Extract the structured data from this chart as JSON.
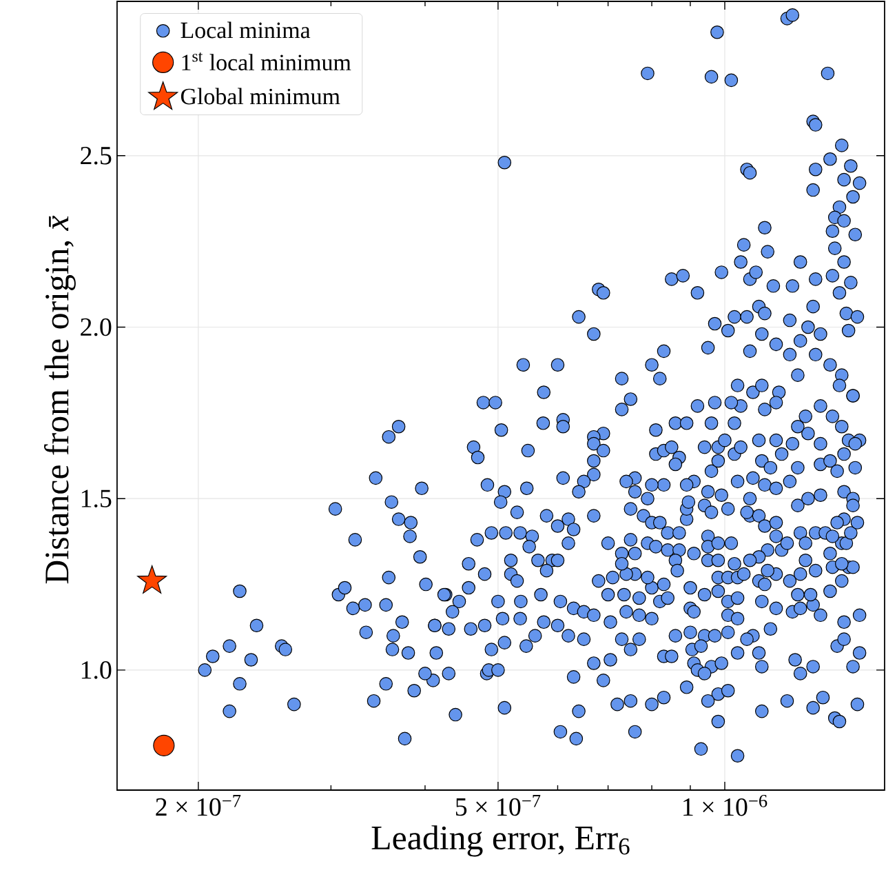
{
  "chart_data": {
    "type": "scatter",
    "xlabel": "Leading error, Err$_{6}$",
    "ylabel": "Distance from the origin, *x̄*",
    "log": "x",
    "grid": true,
    "legend": "top left",
    "xlim": [
      1.56e-07,
      1.63e-06
    ],
    "ylim": [
      0.65,
      2.95
    ],
    "xticks": [
      {
        "value": 2e-07,
        "label": "2 × 10$^{−7}$"
      },
      {
        "value": 3e-07,
        "label": null
      },
      {
        "value": 4e-07,
        "label": null
      },
      {
        "value": 5e-07,
        "label": "5 × 10$^{−7}$"
      },
      {
        "value": 6e-07,
        "label": null
      },
      {
        "value": 7e-07,
        "label": null
      },
      {
        "value": 8e-07,
        "label": null
      },
      {
        "value": 9e-07,
        "label": null
      },
      {
        "value": 1e-06,
        "label": "1 × 10$^{−6}$"
      }
    ],
    "yticks": [
      {
        "value": 1.0,
        "label": "1.0"
      },
      {
        "value": 1.5,
        "label": "1.5"
      },
      {
        "value": 2.0,
        "label": "2.0"
      },
      {
        "value": 2.5,
        "label": "2.5"
      }
    ],
    "series": [
      {
        "name": "Local minima",
        "color": "#6495ed",
        "marker": "circle",
        "x": [
          2.27e-07,
          2.04e-07,
          2.09e-07,
          2.2e-07,
          2.39e-07,
          2.35e-07,
          2.27e-07,
          2.2e-07,
          2.58e-07,
          2.61e-07,
          2.68e-07,
          3.04e-07,
          3.07e-07,
          3.13e-07,
          3.21e-07,
          3.23e-07,
          3.33e-07,
          3.34e-07,
          3.42e-07,
          3.44e-07,
          3.55e-07,
          3.55e-07,
          3.58e-07,
          3.58e-07,
          3.69e-07,
          3.61e-07,
          3.62e-07,
          3.63e-07,
          3.69e-07,
          3.73e-07,
          3.76e-07,
          3.8e-07,
          3.83e-07,
          3.82e-07,
          3.94e-07,
          3.96e-07,
          4.01e-07,
          3.87e-07,
          4.12e-07,
          4.14e-07,
          4.1e-07,
          4.39e-07,
          4.26e-07,
          4.57e-07,
          4.64e-07,
          4.7e-07,
          4.78e-07,
          4.69e-07,
          4.84e-07,
          4.83e-07,
          5.1e-07,
          7.9e-07,
          9.6e-07,
          9.77e-07,
          1.02e-06,
          1.21e-06,
          1.23e-06,
          1.37e-06,
          1.31e-06,
          1.32e-06,
          1.43e-06,
          1.38e-06,
          1.47e-06,
          1.07e-06,
          1.08e-06,
          1.32e-06,
          1.44e-06,
          1.51e-06,
          1.31e-06,
          1.48e-06,
          1.42e-06,
          1.4e-06,
          1.44e-06,
          1.13e-06,
          1.39e-06,
          1.49e-06,
          1.4e-06,
          1.06e-06,
          1.14e-06,
          1.05e-06,
          1.26e-06,
          1.44e-06,
          9.9e-07,
          8.5e-07,
          8.8e-07,
          1.08e-06,
          1.1e-06,
          1.39e-06,
          1.32e-06,
          1.47e-06,
          9.2e-07,
          6.8e-07,
          6.9e-07,
          1.16e-06,
          1.23e-06,
          1.42e-06,
          6.4e-07,
          1.03e-06,
          1.07e-06,
          1.11e-06,
          1.13e-06,
          1.22e-06,
          1.31e-06,
          1.45e-06,
          1.5e-06,
          6.7e-07,
          9.7e-07,
          1.01e-06,
          1.29e-06,
          1.34e-06,
          1.46e-06,
          5.4e-07,
          6e-07,
          5.75e-07,
          8.3e-07,
          8e-07,
          8.2e-07,
          7.3e-07,
          9.5e-07,
          1.08e-06,
          1.12e-06,
          1.17e-06,
          1.22e-06,
          1.26e-06,
          1.32e-06,
          1.38e-06,
          1.04e-06,
          1.09e-06,
          1.12e-06,
          1.18e-06,
          1.25e-06,
          1.43e-06,
          1.48e-06,
          4.96e-07,
          5.05e-07,
          5.48e-07,
          5.74e-07,
          6.1e-07,
          6.1e-07,
          7.3e-07,
          7.5e-07,
          6.9e-07,
          6.7e-07,
          6.7e-07,
          6.9e-07,
          6.7e-07,
          6.7e-07,
          6.5e-07,
          6.4e-07,
          6.1e-07,
          5.1e-07,
          5.46e-07,
          5.04e-07,
          5.3e-07,
          4.9e-07,
          5.12e-07,
          5.35e-07,
          5.55e-07,
          5.5e-07,
          5.8e-07,
          6e-07,
          6.2e-07,
          6.3e-07,
          6.2e-07,
          6.7e-07,
          5.65e-07,
          5.9e-07,
          6e-07,
          5.8e-07,
          5.2e-07,
          5.2e-07,
          5.3e-07,
          4.8e-07,
          4.57e-07,
          4.24e-07,
          4.44e-07,
          4.35e-07,
          4.12e-07,
          4.3e-07,
          4.6e-07,
          4.8e-07,
          5.07e-07,
          5e-07,
          5.36e-07,
          5.7e-07,
          6.05e-07,
          6.3e-07,
          6.5e-07,
          6.7e-07,
          5.35e-07,
          5.6e-07,
          5.75e-07,
          6e-07,
          6.2e-07,
          6.5e-07,
          5.1e-07,
          4.9e-07,
          5.45e-07,
          4e-07,
          4.3e-07,
          4.86e-07,
          5e-07,
          5.1e-07,
          6.05e-07,
          6.35e-07,
          6.4e-07,
          6.3e-07,
          6.7e-07,
          6.9e-07,
          7.05e-07,
          7.2e-07,
          7.5e-07,
          7.6e-07,
          8e-07,
          8.3e-07,
          7.05e-07,
          7.3e-07,
          7.5e-07,
          7.7e-07,
          7.4e-07,
          7.7e-07,
          8e-07,
          8.2e-07,
          8.4e-07,
          8e-07,
          8.3e-07,
          7.7e-07,
          7.35e-07,
          7e-07,
          6.8e-07,
          7.1e-07,
          7.6e-07,
          7.4e-07,
          7.9e-07,
          7e-07,
          7.3e-07,
          7.5e-07,
          7.6e-07,
          7.3e-07,
          7.9e-07,
          8.1e-07,
          8.4e-07,
          8.7e-07,
          8.6e-07,
          8.65e-07,
          7.5e-07,
          7.8e-07,
          8e-07,
          8.2e-07,
          8.4e-07,
          8.7e-07,
          8.9e-07,
          8.9e-07,
          8.95e-07,
          9.1e-07,
          8.9e-07,
          8.3e-07,
          8e-07,
          7.6e-07,
          7.4e-07,
          7.6e-07,
          7.9e-07,
          8.1e-07,
          8.3e-07,
          8.5e-07,
          8.7e-07,
          8.6e-07,
          8.1e-07,
          8.6e-07,
          8.9e-07,
          9.2e-07,
          9.6e-07,
          9.7e-07,
          1.03e-06,
          1.05e-06,
          1.02e-06,
          9.4e-07,
          9.8e-07,
          1e-06,
          1.03e-06,
          1.05e-06,
          9.6e-07,
          9.8e-07,
          9.5e-07,
          9.9e-07,
          1.01e-06,
          9.4e-07,
          9.6e-07,
          9.5e-07,
          9.5e-07,
          9.8e-07,
          1.02e-06,
          9.1e-07,
          9.5e-07,
          9.8e-07,
          1.03e-06,
          9.8e-07,
          1.01e-06,
          1.04e-06,
          1.06e-06,
          9e-07,
          9.4e-07,
          9.8e-07,
          1.01e-06,
          1.04e-06,
          9e-07,
          9.1e-07,
          1.01e-06,
          1.04e-06,
          8.6e-07,
          9e-07,
          9.4e-07,
          9.7e-07,
          1.01e-06,
          1.09e-06,
          1.07e-06,
          9.05e-07,
          9.3e-07,
          8.3e-07,
          8.5e-07,
          9.1e-07,
          9.2e-07,
          9.6e-07,
          9.9e-07,
          9.4e-07,
          1.04e-06,
          1.11e-06,
          1.12e-06,
          8.9e-07,
          9.8e-07,
          1.01e-06,
          9.5e-07,
          9.8e-07,
          9.3e-07,
          1.04e-06,
          1.12e-06,
          1.21e-06,
          1.24e-06,
          1.26e-06,
          1.31e-06,
          1.31e-06,
          1.35e-06,
          1.4e-06,
          1.42e-06,
          1.5e-06,
          1.48e-06,
          1.51e-06,
          1.41e-06,
          1.44e-06,
          1.51e-06,
          1.44e-06,
          1.34e-06,
          1.23e-06,
          1.17e-06,
          1.15e-06,
          1.12e-06,
          1.26e-06,
          1.31e-06,
          1.38e-06,
          1.3e-06,
          1.25e-06,
          1.11e-06,
          1.13e-06,
          1.17e-06,
          1.22e-06,
          1.26e-06,
          1.32e-06,
          1.39e-06,
          1.43e-06,
          1.46e-06,
          1.48e-06,
          1.43e-06,
          1.38e-06,
          1.43e-06,
          1.28e-06,
          1.19e-06,
          1.14e-06,
          1.11e-06,
          1.08e-06,
          1.14e-06,
          1.17e-06,
          1.21e-06,
          1.26e-06,
          1.28e-06,
          1.32e-06,
          1.36e-06,
          1.39e-06,
          1.45e-06,
          1.47e-06,
          1.5e-06,
          1.44e-06,
          1.41e-06,
          1.08e-06,
          1.11e-06,
          1.13e-06,
          1.17e-06,
          1.08e-06,
          1.07e-06,
          1.25e-06,
          1.29e-06,
          1.34e-06,
          1.44e-06,
          1.48e-06,
          1.48e-06,
          1.04e-06,
          1.09e-06,
          1.13e-06,
          1.17e-06,
          1.22e-06,
          1.25e-06,
          1.34e-06,
          1.38e-06,
          1.41e-06,
          1.49e-06,
          1.44e-06,
          1.34e-06,
          1.29e-06,
          1.25e-06,
          1.28e-06,
          1.39e-06,
          1.43e-06,
          1.46e-06,
          1.51e-06,
          1.49e-06,
          1.11e-06,
          1.12e-06,
          1.15e-06,
          1.17e-06,
          1.19e-06,
          1.23e-06,
          1.13e-06,
          1.17e-06,
          1.34e-06,
          1.48e-06,
          1.42e-06
        ],
        "values": [
          1.23,
          1.0,
          1.04,
          1.07,
          1.13,
          1.03,
          0.96,
          0.88,
          1.07,
          1.06,
          0.9,
          1.47,
          1.22,
          1.24,
          1.18,
          1.38,
          1.19,
          1.11,
          0.91,
          1.56,
          0.96,
          1.19,
          1.27,
          1.68,
          1.71,
          1.49,
          1.06,
          1.1,
          1.44,
          1.14,
          0.8,
          1.05,
          1.43,
          1.39,
          1.33,
          1.53,
          1.25,
          0.94,
          1.13,
          1.05,
          0.97,
          0.87,
          1.22,
          1.31,
          1.65,
          1.62,
          1.78,
          1.38,
          1.54,
          0.99,
          2.48,
          2.74,
          2.73,
          2.86,
          2.72,
          2.9,
          2.91,
          2.74,
          2.6,
          2.59,
          2.53,
          2.49,
          2.47,
          2.46,
          2.45,
          2.46,
          2.43,
          2.42,
          2.4,
          2.38,
          2.35,
          2.32,
          2.31,
          2.29,
          2.28,
          2.27,
          2.23,
          2.24,
          2.22,
          2.19,
          2.19,
          2.19,
          2.16,
          2.14,
          2.15,
          2.14,
          2.16,
          2.15,
          2.14,
          2.13,
          2.1,
          2.11,
          2.1,
          2.12,
          2.12,
          2.1,
          2.03,
          2.03,
          2.03,
          2.06,
          2.04,
          2.02,
          2.06,
          2.04,
          2.03,
          1.98,
          2.01,
          1.99,
          2.0,
          1.98,
          1.99,
          1.89,
          1.89,
          1.81,
          1.93,
          1.89,
          1.85,
          1.85,
          1.94,
          1.93,
          1.98,
          1.95,
          1.92,
          1.96,
          1.92,
          1.89,
          1.83,
          1.81,
          1.83,
          1.81,
          1.86,
          1.86,
          1.8,
          1.78,
          1.7,
          1.64,
          1.72,
          1.73,
          1.71,
          1.76,
          1.79,
          1.69,
          1.68,
          1.66,
          1.64,
          1.61,
          1.57,
          1.55,
          1.52,
          1.56,
          1.52,
          1.53,
          1.49,
          1.46,
          1.4,
          1.4,
          1.4,
          1.39,
          1.36,
          1.45,
          1.42,
          1.44,
          1.41,
          1.37,
          1.45,
          1.32,
          1.32,
          1.32,
          1.29,
          1.32,
          1.28,
          1.26,
          1.28,
          1.24,
          1.22,
          1.2,
          1.17,
          1.13,
          1.12,
          1.12,
          1.13,
          1.15,
          1.2,
          1.2,
          1.22,
          1.2,
          1.18,
          1.17,
          1.16,
          1.15,
          1.1,
          1.14,
          1.13,
          1.1,
          1.09,
          1.08,
          1.06,
          1.07,
          0.99,
          0.99,
          1.0,
          1.0,
          0.89,
          0.82,
          0.8,
          0.88,
          0.98,
          1.02,
          0.97,
          1.03,
          0.9,
          0.91,
          0.82,
          0.9,
          0.92,
          1.14,
          1.09,
          1.06,
          1.09,
          1.17,
          1.16,
          1.15,
          1.2,
          1.21,
          1.24,
          1.25,
          1.21,
          1.22,
          1.22,
          1.26,
          1.27,
          1.28,
          1.28,
          1.27,
          1.37,
          1.34,
          1.38,
          1.34,
          1.31,
          1.37,
          1.36,
          1.35,
          1.35,
          1.32,
          1.29,
          1.47,
          1.45,
          1.43,
          1.43,
          1.4,
          1.4,
          1.44,
          1.47,
          1.49,
          1.55,
          1.54,
          1.54,
          1.54,
          1.56,
          1.55,
          1.52,
          1.5,
          1.63,
          1.64,
          1.65,
          1.62,
          1.6,
          1.7,
          1.72,
          1.72,
          1.77,
          1.72,
          1.78,
          1.72,
          1.77,
          1.78,
          1.65,
          1.65,
          1.67,
          1.63,
          1.65,
          1.58,
          1.61,
          1.52,
          1.51,
          1.47,
          1.48,
          1.46,
          1.39,
          1.36,
          1.37,
          1.37,
          1.34,
          1.32,
          1.32,
          1.31,
          1.27,
          1.27,
          1.27,
          1.28,
          1.24,
          1.22,
          1.23,
          1.2,
          1.21,
          1.18,
          1.17,
          1.16,
          1.15,
          1.1,
          1.11,
          1.1,
          1.1,
          1.11,
          1.1,
          1.09,
          1.06,
          1.07,
          1.04,
          1.04,
          1.02,
          1.0,
          1.01,
          1.02,
          0.99,
          1.05,
          1.05,
          1.01,
          0.95,
          0.93,
          0.94,
          0.91,
          0.85,
          0.77,
          0.75,
          0.88,
          0.91,
          1.03,
          0.99,
          1.01,
          0.89,
          0.92,
          0.86,
          0.85,
          0.9,
          1.01,
          1.05,
          1.07,
          1.09,
          1.16,
          1.14,
          1.16,
          1.17,
          1.18,
          1.12,
          1.2,
          1.18,
          1.19,
          1.23,
          1.22,
          1.22,
          1.26,
          1.25,
          1.28,
          1.26,
          1.28,
          1.29,
          1.3,
          1.26,
          1.3,
          1.3,
          1.31,
          1.34,
          1.37,
          1.32,
          1.35,
          1.35,
          1.33,
          1.32,
          1.29,
          1.39,
          1.37,
          1.4,
          1.37,
          1.4,
          1.4,
          1.39,
          1.37,
          1.4,
          1.43,
          1.44,
          1.43,
          1.45,
          1.45,
          1.42,
          1.43,
          1.5,
          1.46,
          1.48,
          1.5,
          1.51,
          1.52,
          1.5,
          1.48,
          1.55,
          1.56,
          1.54,
          1.53,
          1.55,
          1.59,
          1.6,
          1.61,
          1.58,
          1.59,
          1.63,
          1.66,
          1.69,
          1.71,
          1.74,
          1.74,
          1.71,
          1.67,
          1.67,
          1.66,
          1.67,
          1.61,
          1.59,
          1.67,
          1.63,
          1.66,
          1.76,
          1.78,
          1.77,
          1.8,
          1.83
        ]
      },
      {
        "name": "1$^{st}$ local minimum",
        "color": "#ff4500",
        "marker": "circle",
        "x": [
          1.8e-07
        ],
        "values": [
          0.78
        ]
      },
      {
        "name": "Global minimum",
        "color": "#ff4500",
        "marker": "star",
        "x": [
          1.736e-07
        ],
        "values": [
          1.26
        ]
      }
    ]
  }
}
